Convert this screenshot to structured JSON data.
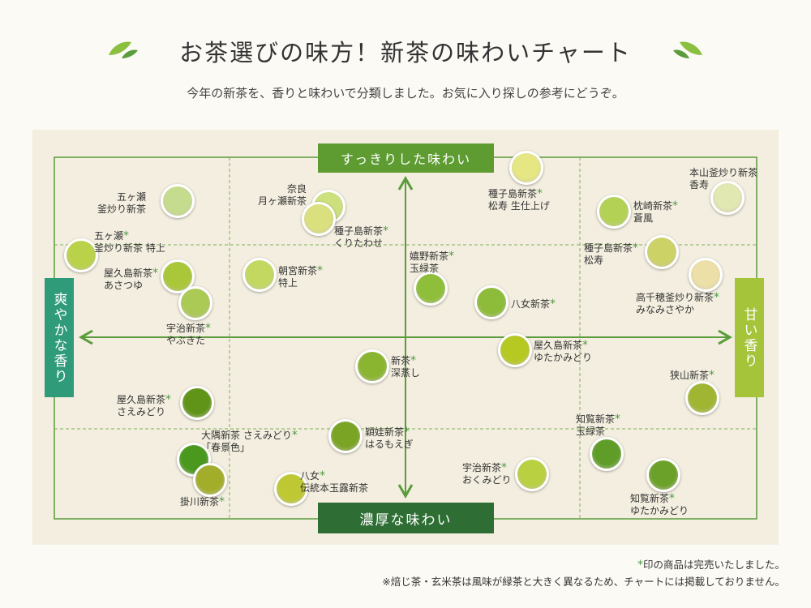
{
  "header": {
    "title": "お茶選びの味方！新茶の味わいチャート",
    "subtitle": "今年の新茶を、香りと味わいで分類しました。お気に入り探しの参考にどうぞ。"
  },
  "axes": {
    "top": "すっきりした味わい",
    "bottom": "濃厚な味わい",
    "left": "爽やかな香り",
    "right": "甘い香り"
  },
  "colors": {
    "frame": "#5a9b3c",
    "top_label": "#5e9c32",
    "bottom_label": "#2e6e34",
    "left_label": "#2f9b79",
    "right_label": "#a5c43a",
    "asterisk": "#4e9a43"
  },
  "teas": [
    {
      "lines": [
        "五ヶ瀬",
        "釜炒り新茶"
      ],
      "color": "#c5dc8e"
    },
    {
      "lines": [
        "五ヶ瀬",
        "釜炒り新茶 特上"
      ],
      "mark": "*",
      "color": "#b9d24a"
    },
    {
      "lines": [
        "屋久島新茶",
        "あさつゆ"
      ],
      "mark": "*",
      "color": "#a9c739"
    },
    {
      "lines": [
        "宇治新茶",
        "やぶきた"
      ],
      "mark": "*",
      "color": "#aac955"
    },
    {
      "lines": [
        "奈良",
        "月ヶ瀬新茶"
      ],
      "color": "#cde07e"
    },
    {
      "lines": [
        "種子島新茶",
        "くりたわせ"
      ],
      "mark": "*",
      "color": "#dbe07f"
    },
    {
      "lines": [
        "朝宮新茶",
        "特上"
      ],
      "mark": "*",
      "color": "#c3d861"
    },
    {
      "lines": [
        "種子島新茶",
        "松寿 生仕上げ"
      ],
      "mark": "*",
      "color": "#e6e683"
    },
    {
      "lines": [
        "本山釜炒り新茶",
        "香寿"
      ],
      "color": "#e2e8b2"
    },
    {
      "lines": [
        "枕崎新茶",
        "蒼風"
      ],
      "mark": "*",
      "color": "#b3d255"
    },
    {
      "lines": [
        "種子島新茶",
        "松寿"
      ],
      "mark": "*",
      "color": "#cdd267"
    },
    {
      "lines": [
        "高千穂釜炒り新茶",
        "みなみさやか"
      ],
      "mark": "*",
      "color": "#ece0a8"
    },
    {
      "lines": [
        "嬉野新茶",
        "玉緑茶"
      ],
      "mark": "*",
      "color": "#8ebe3a"
    },
    {
      "lines": [
        "八女新茶"
      ],
      "mark": "*",
      "color": "#8dbb3a"
    },
    {
      "lines": [
        "屋久島新茶",
        "ゆたかみどり"
      ],
      "mark": "*",
      "color": "#b6c822"
    },
    {
      "lines": [
        "新茶",
        "深蒸し"
      ],
      "mark": "*",
      "color": "#89b531"
    },
    {
      "lines": [
        "狭山新茶"
      ],
      "mark": "*",
      "color": "#a0b531"
    },
    {
      "lines": [
        "屋久島新茶",
        "さえみどり"
      ],
      "mark": "*",
      "color": "#5f9419"
    },
    {
      "lines": [
        "大隅新茶 さえみどり",
        "「春景色」"
      ],
      "mark": "*",
      "color": "#4a991e"
    },
    {
      "lines": [
        "掛川新茶"
      ],
      "mark": "*",
      "color": "#a2ad2a"
    },
    {
      "lines": [
        "穎娃新茶",
        "はるもえぎ"
      ],
      "mark": "*",
      "color": "#7aa424"
    },
    {
      "lines": [
        "八女",
        "伝統本玉露新茶"
      ],
      "mark": "*",
      "color": "#bdc833"
    },
    {
      "lines": [
        "宇治新茶",
        "おくみどり"
      ],
      "mark": "*",
      "color": "#b9d040"
    },
    {
      "lines": [
        "知覧新茶",
        "玉緑茶"
      ],
      "mark": "*",
      "color": "#5f9d28"
    },
    {
      "lines": [
        "知覧新茶",
        "ゆたかみどり"
      ],
      "mark": "*",
      "color": "#6ba129"
    }
  ],
  "footer": {
    "mark": "*",
    "note1": "印の商品は完売いたしました。",
    "note2": "※焙じ茶・玄米茶は風味が緑茶と大きく異なるため、チャートには掲載しておりません。"
  }
}
